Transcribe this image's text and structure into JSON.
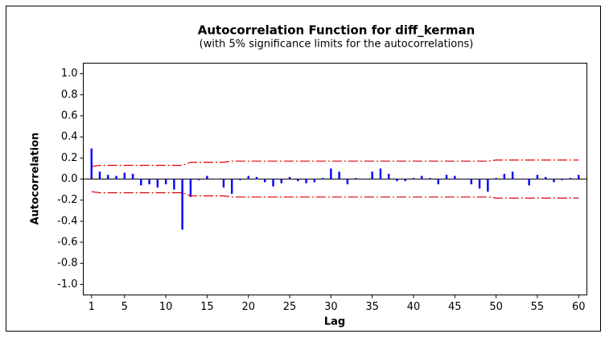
{
  "chart_data": {
    "type": "bar",
    "title": "Autocorrelation Function for diff_kerman",
    "subtitle": "(with 5% significance limits for the autocorrelations)",
    "x_label": "Lag",
    "y_label": "Autocorrelation",
    "x": [
      1,
      2,
      3,
      4,
      5,
      6,
      7,
      8,
      9,
      10,
      11,
      12,
      13,
      14,
      15,
      16,
      17,
      18,
      19,
      20,
      21,
      22,
      23,
      24,
      25,
      26,
      27,
      28,
      29,
      30,
      31,
      32,
      33,
      34,
      35,
      36,
      37,
      38,
      39,
      40,
      41,
      42,
      43,
      44,
      45,
      46,
      47,
      48,
      49,
      50,
      51,
      52,
      53,
      54,
      55,
      56,
      57,
      58,
      59,
      60
    ],
    "values": [
      0.29,
      0.07,
      0.04,
      0.03,
      0.06,
      0.05,
      -0.06,
      -0.05,
      -0.08,
      -0.05,
      -0.1,
      -0.48,
      -0.17,
      -0.01,
      0.03,
      0.0,
      -0.08,
      -0.14,
      -0.01,
      0.03,
      0.02,
      -0.03,
      -0.07,
      -0.04,
      0.02,
      -0.02,
      -0.04,
      -0.03,
      0.01,
      0.1,
      0.07,
      -0.05,
      0.01,
      0.0,
      0.07,
      0.1,
      0.05,
      -0.02,
      -0.02,
      0.01,
      0.03,
      0.01,
      -0.05,
      0.04,
      0.03,
      0.0,
      -0.05,
      -0.09,
      -0.12,
      0.01,
      0.05,
      0.07,
      0.0,
      -0.06,
      0.04,
      0.02,
      -0.03,
      -0.01,
      0.01,
      0.04
    ],
    "color": "#0000ff",
    "limits": {
      "color": "#e00000",
      "upper": [
        0.12,
        0.13,
        0.13,
        0.13,
        0.13,
        0.13,
        0.13,
        0.13,
        0.13,
        0.13,
        0.13,
        0.13,
        0.16,
        0.16,
        0.16,
        0.16,
        0.16,
        0.17,
        0.17,
        0.17,
        0.17,
        0.17,
        0.17,
        0.17,
        0.17,
        0.17,
        0.17,
        0.17,
        0.17,
        0.17,
        0.17,
        0.17,
        0.17,
        0.17,
        0.17,
        0.17,
        0.17,
        0.17,
        0.17,
        0.17,
        0.17,
        0.17,
        0.17,
        0.17,
        0.17,
        0.17,
        0.17,
        0.17,
        0.17,
        0.18,
        0.18,
        0.18,
        0.18,
        0.18,
        0.18,
        0.18,
        0.18,
        0.18,
        0.18,
        0.18
      ],
      "lower": [
        -0.12,
        -0.13,
        -0.13,
        -0.13,
        -0.13,
        -0.13,
        -0.13,
        -0.13,
        -0.13,
        -0.13,
        -0.13,
        -0.13,
        -0.16,
        -0.16,
        -0.16,
        -0.16,
        -0.16,
        -0.17,
        -0.17,
        -0.17,
        -0.17,
        -0.17,
        -0.17,
        -0.17,
        -0.17,
        -0.17,
        -0.17,
        -0.17,
        -0.17,
        -0.17,
        -0.17,
        -0.17,
        -0.17,
        -0.17,
        -0.17,
        -0.17,
        -0.17,
        -0.17,
        -0.17,
        -0.17,
        -0.17,
        -0.17,
        -0.17,
        -0.17,
        -0.17,
        -0.17,
        -0.17,
        -0.17,
        -0.17,
        -0.18,
        -0.18,
        -0.18,
        -0.18,
        -0.18,
        -0.18,
        -0.18,
        -0.18,
        -0.18,
        -0.18,
        -0.18
      ]
    },
    "xlim": [
      0,
      61
    ],
    "ylim": [
      -1.1,
      1.1
    ],
    "xticks": [
      1,
      5,
      10,
      15,
      20,
      25,
      30,
      35,
      40,
      45,
      50,
      55,
      60
    ],
    "yticks": [
      {
        "value": -1,
        "label": "-1.0"
      },
      -0.8,
      -0.6,
      -0.4,
      -0.2,
      {
        "value": 0,
        "label": "0.0"
      },
      0.2,
      0.4,
      0.6,
      0.8,
      {
        "value": 1,
        "label": "1.0"
      }
    ]
  }
}
